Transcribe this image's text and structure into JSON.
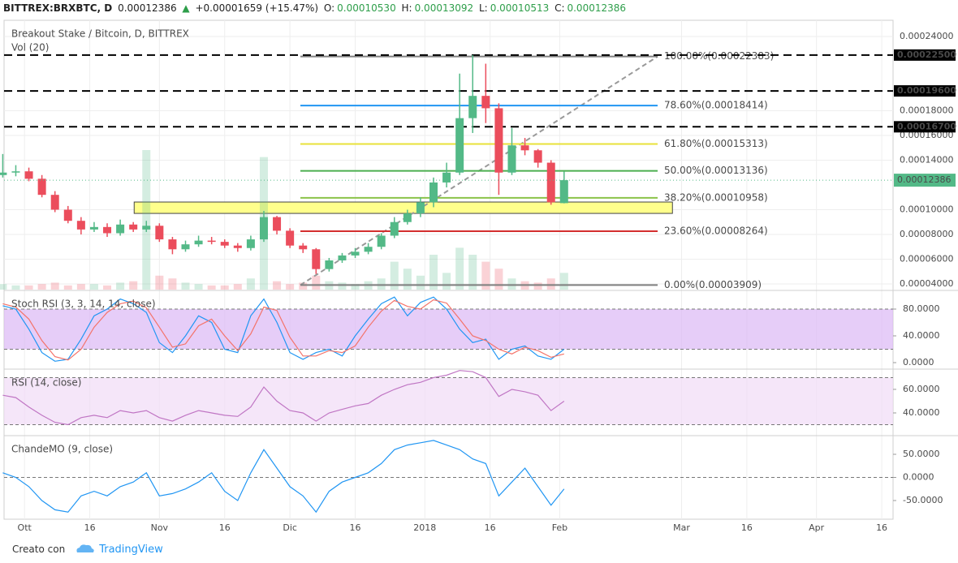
{
  "header": {
    "symbol": "BITTREX:BRXBTC, D",
    "price": "0.00012386",
    "arrow": "▲",
    "change": "+0.00001659 (+15.47%)",
    "open_label": "O:",
    "open": "0.00010530",
    "high_label": "H:",
    "high": "0.00013092",
    "low_label": "L:",
    "low": "0.00010513",
    "close_label": "C:",
    "close": "0.00012386"
  },
  "footer": {
    "created": "Creato con",
    "brand": "TradingView"
  },
  "chart_data": [
    {
      "type": "candlestick",
      "title": "Breakout Stake / Bitcoin, D, BITTREX",
      "volume_title": "Vol (20)",
      "x": [
        -5,
        -2,
        1,
        4,
        7,
        10,
        13,
        16,
        19,
        22,
        25,
        28,
        31,
        34,
        37,
        40,
        43,
        46,
        49,
        52,
        55,
        58,
        61,
        64,
        67,
        70,
        73,
        76,
        79,
        82,
        85,
        88,
        91,
        94,
        97,
        100,
        103,
        106,
        109,
        112,
        115,
        118,
        121,
        124
      ],
      "open": [
        0.000128,
        0.00013,
        0.000131,
        0.000125,
        0.000112,
        0.0001,
        9.1e-05,
        8.4e-05,
        8.6e-05,
        8.1e-05,
        8.8e-05,
        8.4e-05,
        8.7e-05,
        7.6e-05,
        6.8e-05,
        7.2e-05,
        7.5e-05,
        7.4e-05,
        7.1e-05,
        6.9e-05,
        7.6e-05,
        9.4e-05,
        8.3e-05,
        7.1e-05,
        6.8e-05,
        5.2e-05,
        5.9e-05,
        6.3e-05,
        6.6e-05,
        7e-05,
        7.9e-05,
        9e-05,
        9.7e-05,
        0.000106,
        0.000122,
        0.00013,
        0.000174,
        0.000192,
        0.000182,
        0.00013,
        0.000152,
        0.000148,
        0.000138,
        0.0001053
      ],
      "high": [
        0.000145,
        0.000136,
        0.000134,
        0.000128,
        0.000115,
        0.000103,
        9.4e-05,
        9e-05,
        8.9e-05,
        9.2e-05,
        9e-05,
        9.1e-05,
        8.9e-05,
        7.8e-05,
        7.5e-05,
        7.9e-05,
        7.8e-05,
        7.6e-05,
        7.3e-05,
        7.9e-05,
        9.9e-05,
        9.5e-05,
        8.5e-05,
        7.3e-05,
        6.9e-05,
        6.1e-05,
        6.5e-05,
        6.9e-05,
        7.3e-05,
        8.1e-05,
        9.4e-05,
        0.0001,
        0.00011,
        0.000126,
        0.000138,
        0.00021,
        0.000225,
        0.000218,
        0.000186,
        0.000166,
        0.000158,
        0.000149,
        0.00014,
        0.00013092
      ],
      "low": [
        0.000126,
        0.000127,
        0.000123,
        0.00011,
        9.8e-05,
        8.9e-05,
        8e-05,
        8.2e-05,
        7.8e-05,
        7.9e-05,
        8.2e-05,
        8.2e-05,
        7.4e-05,
        6.4e-05,
        6.6e-05,
        7e-05,
        7.2e-05,
        6.9e-05,
        6.6e-05,
        6.7e-05,
        7.4e-05,
        8e-05,
        6.9e-05,
        6.5e-05,
        4.8e-05,
        5e-05,
        5.7e-05,
        6.1e-05,
        6.4e-05,
        6.8e-05,
        7.7e-05,
        8.8e-05,
        9.4e-05,
        0.000102,
        0.000118,
        0.000128,
        0.000162,
        0.00017,
        0.000112,
        0.000128,
        0.000144,
        0.000134,
        0.000104,
        0.00010513
      ],
      "close": [
        0.00013,
        0.000131,
        0.000125,
        0.000112,
        0.0001,
        9.1e-05,
        8.4e-05,
        8.6e-05,
        8.1e-05,
        8.8e-05,
        8.4e-05,
        8.7e-05,
        7.6e-05,
        6.8e-05,
        7.2e-05,
        7.5e-05,
        7.4e-05,
        7.1e-05,
        6.9e-05,
        7.6e-05,
        9.4e-05,
        8.3e-05,
        7.1e-05,
        6.8e-05,
        5.2e-05,
        5.9e-05,
        6.3e-05,
        6.6e-05,
        7e-05,
        7.9e-05,
        9e-05,
        9.7e-05,
        0.000106,
        0.000122,
        0.00013,
        0.000174,
        0.000192,
        0.000182,
        0.00013,
        0.000152,
        0.000148,
        0.000138,
        0.000106,
        0.00012386
      ],
      "up_color": "#53b987",
      "down_color": "#eb4d5c",
      "last_color": "#53b987",
      "volume": {
        "values": [
          4,
          3,
          3,
          4,
          5,
          3,
          4,
          4,
          3,
          5,
          6,
          100,
          10,
          8,
          5,
          4,
          3,
          3,
          4,
          8,
          95,
          6,
          4,
          5,
          10,
          6,
          5,
          4,
          6,
          8,
          20,
          15,
          10,
          25,
          12,
          30,
          25,
          20,
          15,
          8,
          6,
          5,
          8,
          12
        ],
        "ylim": [
          0,
          100
        ]
      },
      "xlim": [
        -4.7,
        199.6
      ],
      "xticks": [
        {
          "value": 0,
          "label": "Ott"
        },
        {
          "value": 15,
          "label": "16"
        },
        {
          "value": 31,
          "label": "Nov"
        },
        {
          "value": 46,
          "label": "16"
        },
        {
          "value": 61,
          "label": "Dic"
        },
        {
          "value": 76,
          "label": "16"
        },
        {
          "value": 92,
          "label": "2018"
        },
        {
          "value": 107,
          "label": "16"
        },
        {
          "value": 123,
          "label": "Feb"
        },
        {
          "value": 151,
          "label": "Mar"
        },
        {
          "value": 166,
          "label": "16"
        },
        {
          "value": 182,
          "label": "Apr"
        },
        {
          "value": 197,
          "label": "16"
        }
      ],
      "ylim": [
        3.54e-05,
        0.0002531
      ],
      "yticks": [
        {
          "value": 4e-05,
          "label": "0.00004000"
        },
        {
          "value": 6e-05,
          "label": "0.00006000"
        },
        {
          "value": 8e-05,
          "label": "0.00008000"
        },
        {
          "value": 0.0001,
          "label": "0.00010000"
        },
        {
          "value": 0.00014,
          "label": "0.00014000"
        },
        {
          "value": 0.00016,
          "label": "0.00016000"
        },
        {
          "value": 0.00018,
          "label": "0.00018000"
        },
        {
          "value": 0.00024,
          "label": "0.00024000"
        }
      ],
      "hlines": [
        {
          "value": 0.000225,
          "label": "0.00022500"
        },
        {
          "value": 0.000196,
          "label": "0.00019600"
        },
        {
          "value": 0.000167,
          "label": "0.00016700"
        }
      ],
      "zone": {
        "x": [
          25.2,
          148.9
        ],
        "y": [
          9.7e-05,
          0.0001062
        ],
        "color": "#ffff8c"
      },
      "fib": {
        "x": [
          63.4,
          145.5
        ],
        "levels": [
          {
            "label": "100.00%(0.00022383)",
            "value": 0.00022383,
            "color": "#808080"
          },
          {
            "label": "78.60%(0.00018414)",
            "value": 0.00018414,
            "color": "#2196f3"
          },
          {
            "label": "61.80%(0.00015313)",
            "value": 0.00015313,
            "color": "#e8e23a"
          },
          {
            "label": "50.00%(0.00013136)",
            "value": 0.00013136,
            "color": "#4caf50"
          },
          {
            "label": "38.20%(0.00010958)",
            "value": 0.00010958,
            "color": "#8bc34a"
          },
          {
            "label": "23.60%(0.00008264)",
            "value": 8.264e-05,
            "color": "#d32f2f"
          },
          {
            "label": "0.00%(0.00003909)",
            "value": 3.909e-05,
            "color": "#808080"
          }
        ]
      }
    },
    {
      "type": "line",
      "title": "Stoch RSI (3, 3, 14, 14, close)",
      "series": [
        {
          "color": "#2196f3",
          "values": [
            85,
            80,
            50,
            15,
            2,
            5,
            35,
            70,
            80,
            95,
            88,
            75,
            30,
            15,
            40,
            70,
            60,
            20,
            15,
            70,
            95,
            60,
            15,
            5,
            15,
            20,
            10,
            40,
            65,
            88,
            98,
            70,
            90,
            98,
            80,
            50,
            30,
            35,
            5,
            20,
            25,
            10,
            5,
            20
          ]
        },
        {
          "color": "#f4736a",
          "values": [
            88,
            83,
            65,
            33,
            9,
            4,
            20,
            53,
            75,
            88,
            92,
            82,
            53,
            23,
            28,
            55,
            65,
            40,
            18,
            43,
            83,
            78,
            38,
            10,
            10,
            18,
            15,
            25,
            53,
            77,
            93,
            84,
            80,
            94,
            89,
            65,
            40,
            33,
            20,
            13,
            23,
            18,
            8,
            13
          ]
        }
      ],
      "ylim": [
        -9.7,
        107.9
      ],
      "yticks": [
        {
          "value": 80,
          "label": "80.0000"
        },
        {
          "value": 40,
          "label": "40.0000"
        },
        {
          "value": 0,
          "label": "0.0000"
        }
      ],
      "band": [
        20,
        80
      ],
      "band_color": "#dcb8f5",
      "levels": [
        80,
        20
      ]
    },
    {
      "type": "line",
      "title": "RSI (14, close)",
      "series": [
        {
          "color": "#c076c4",
          "values": [
            55,
            53,
            45,
            38,
            32,
            30,
            36,
            38,
            36,
            42,
            40,
            42,
            36,
            33,
            38,
            42,
            40,
            38,
            37,
            45,
            62,
            50,
            42,
            40,
            33,
            40,
            43,
            46,
            48,
            55,
            60,
            64,
            66,
            70,
            72,
            76,
            75,
            70,
            54,
            60,
            58,
            55,
            42,
            50
          ]
        }
      ],
      "ylim": [
        20.7,
        77.2
      ],
      "yticks": [
        {
          "value": 60,
          "label": "60.0000"
        },
        {
          "value": 40,
          "label": "40.0000"
        }
      ],
      "band": [
        30,
        70
      ],
      "band_color": "#f1dcf7",
      "levels": [
        70,
        30
      ]
    },
    {
      "type": "line",
      "title": "ChandeMO (9, close)",
      "series": [
        {
          "color": "#2196f3",
          "values": [
            10,
            0,
            -20,
            -50,
            -70,
            -75,
            -40,
            -30,
            -40,
            -20,
            -10,
            10,
            -40,
            -35,
            -25,
            -10,
            10,
            -30,
            -50,
            10,
            60,
            20,
            -20,
            -40,
            -75,
            -30,
            -10,
            0,
            10,
            30,
            60,
            70,
            75,
            80,
            70,
            60,
            40,
            30,
            -40,
            -10,
            20,
            -20,
            -60,
            -25
          ]
        }
      ],
      "ylim": [
        -90.4,
        90.4
      ],
      "yticks": [
        {
          "value": 50,
          "label": "50.0000"
        },
        {
          "value": 0,
          "label": "0.0000"
        },
        {
          "value": -50,
          "label": "-50.0000"
        }
      ],
      "levels": [
        0
      ]
    }
  ]
}
